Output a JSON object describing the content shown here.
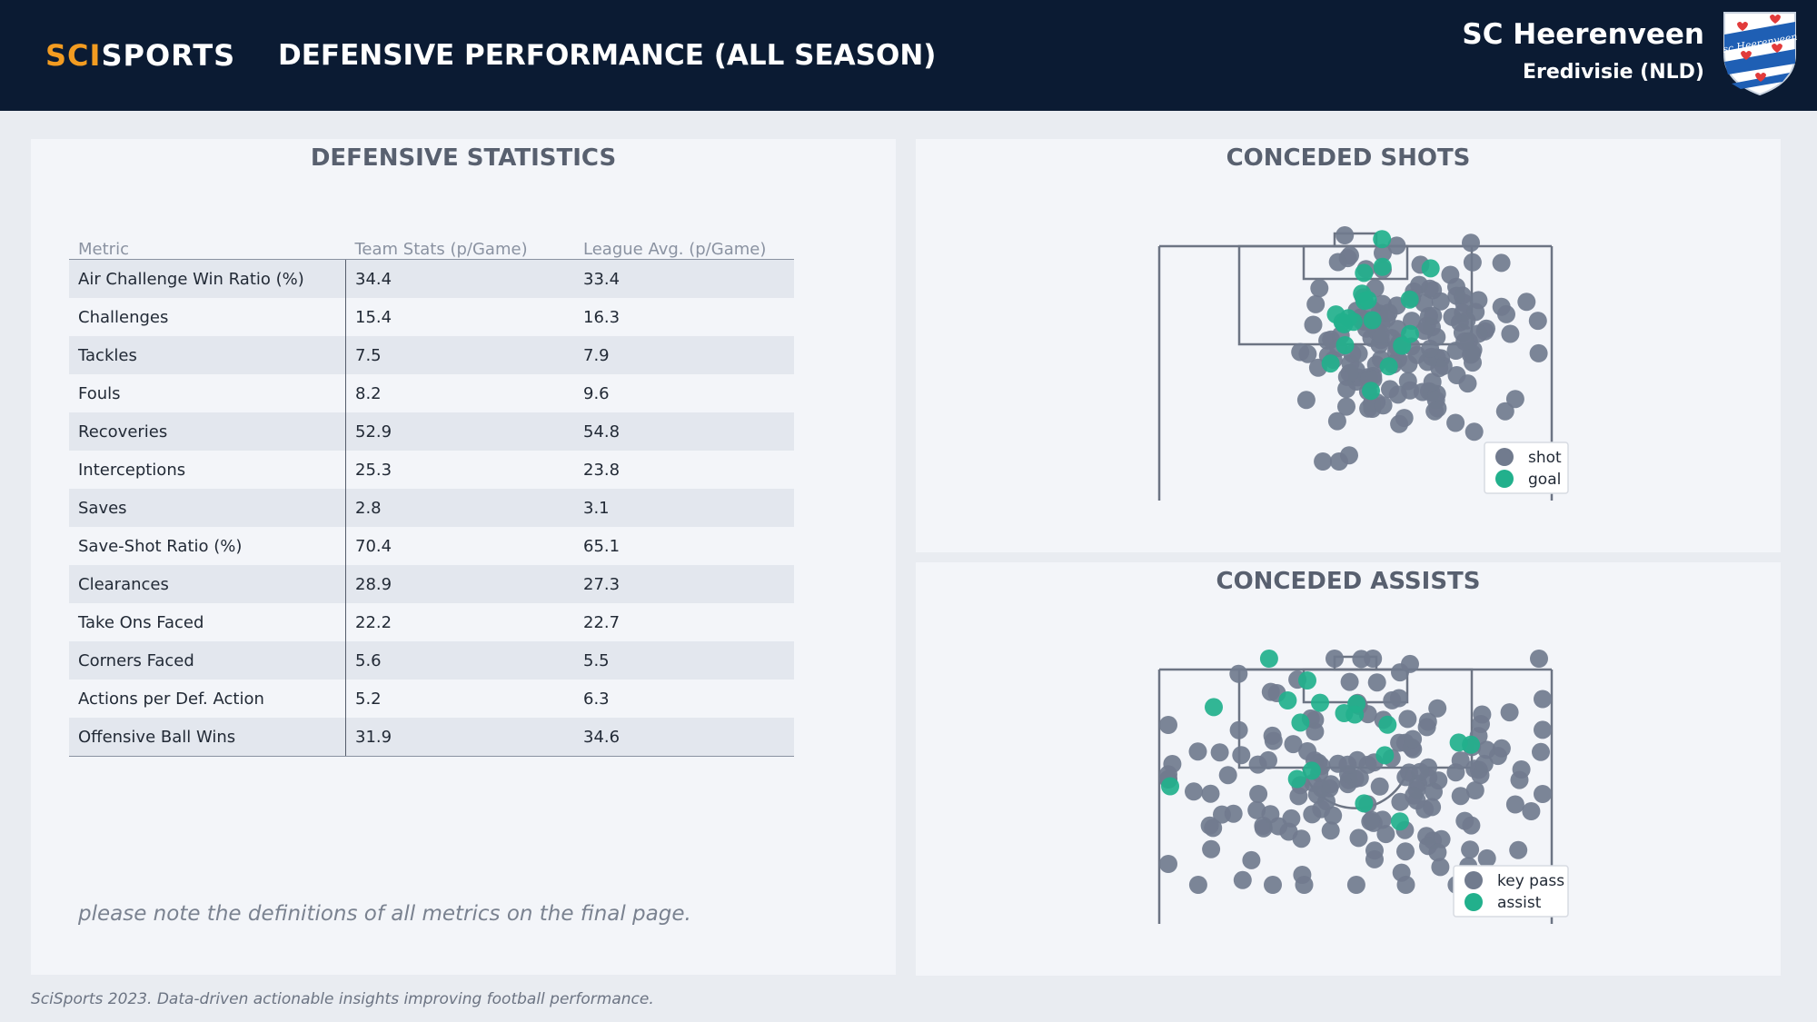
{
  "header": {
    "brand_part1": "SCI",
    "brand_part2": "SPORTS",
    "title": "DEFENSIVE PERFORMANCE (ALL SEASON)",
    "team": "SC Heerenveen",
    "league": "Eredivisie (NLD)",
    "crest_text": "sc Heerenveen"
  },
  "stats_panel": {
    "title": "DEFENSIVE STATISTICS",
    "columns": [
      "Metric",
      "Team Stats (p/Game)",
      "League Avg. (p/Game)"
    ],
    "rows": [
      [
        "Air Challenge Win Ratio (%)",
        "34.4",
        "33.4"
      ],
      [
        "Challenges",
        "15.4",
        "16.3"
      ],
      [
        "Tackles",
        "7.5",
        "7.9"
      ],
      [
        "Fouls",
        "8.2",
        "9.6"
      ],
      [
        "Recoveries",
        "52.9",
        "54.8"
      ],
      [
        "Interceptions",
        "25.3",
        "23.8"
      ],
      [
        "Saves",
        "2.8",
        "3.1"
      ],
      [
        "Save-Shot Ratio (%)",
        "70.4",
        "65.1"
      ],
      [
        "Clearances",
        "28.9",
        "27.3"
      ],
      [
        "Take Ons Faced",
        "22.2",
        "22.7"
      ],
      [
        "Corners Faced",
        "5.6",
        "5.5"
      ],
      [
        "Actions per Def. Action",
        "5.2",
        "6.3"
      ],
      [
        "Offensive Ball Wins",
        "31.9",
        "34.6"
      ]
    ],
    "note": "please note the definitions of all metrics on the final page."
  },
  "shots_panel": {
    "title": "CONCEDED SHOTS",
    "legend": [
      "shot",
      "goal"
    ]
  },
  "assists_panel": {
    "title": "CONCEDED ASSISTS",
    "legend": [
      "key pass",
      "assist"
    ]
  },
  "colors": {
    "header_bg": "#0b1b33",
    "brand_orange": "#f39c21",
    "dot_grey": "#717b8e",
    "dot_green": "#22b08c",
    "pitch_line": "#6c7483"
  },
  "footer": "SciSports 2023. Data-driven actionable insights improving football performance."
}
